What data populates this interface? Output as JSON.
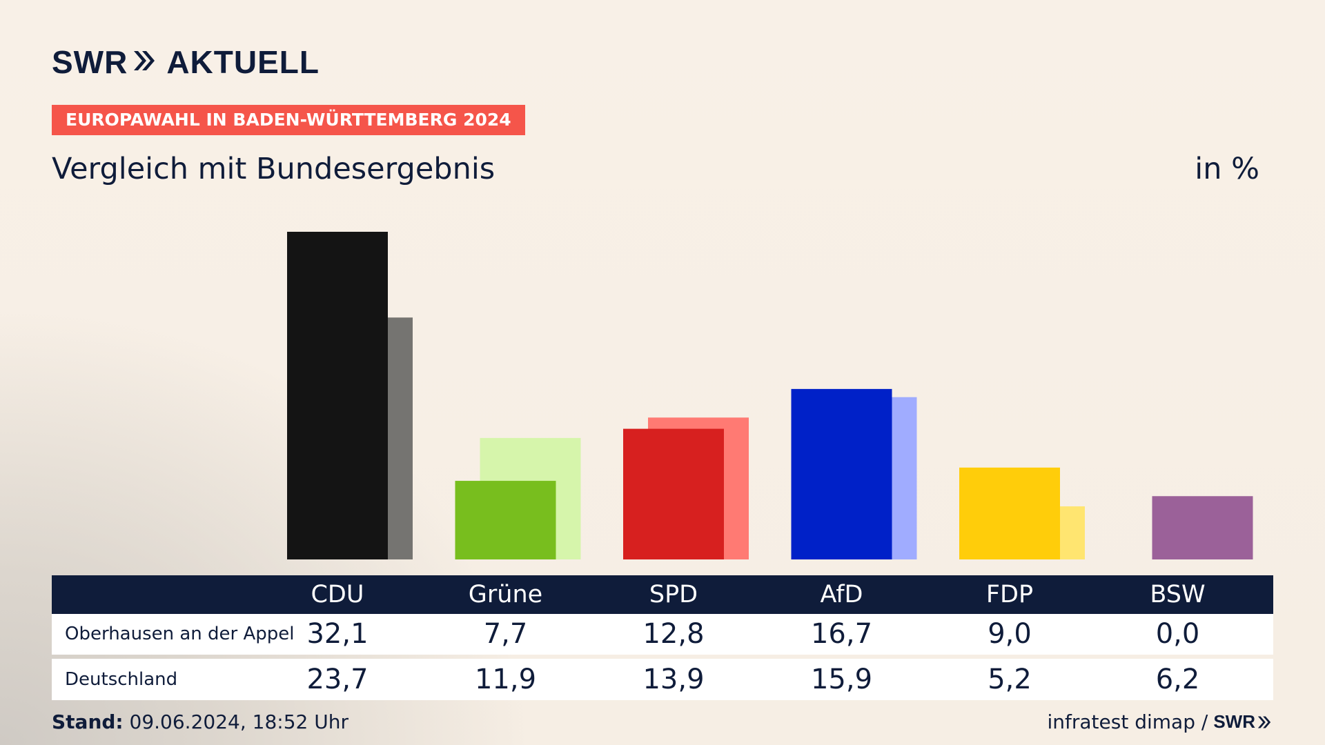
{
  "brand": {
    "logo_left": "SWR",
    "logo_right": "AKTUELL",
    "footer_logo": "SWR",
    "color": "#0f1c3a"
  },
  "tag": {
    "label": "EUROPAWAHL IN BADEN-WÜRTTEMBERG 2024",
    "color": "#f5554a"
  },
  "subtitle": "Vergleich mit Bundesergebnis",
  "unit": "in %",
  "chart_data": {
    "type": "bar",
    "categories": [
      "CDU",
      "Grüne",
      "SPD",
      "AfD",
      "FDP",
      "BSW"
    ],
    "series": [
      {
        "name": "Oberhausen an der Appel",
        "values": [
          32.1,
          7.7,
          12.8,
          16.7,
          9.0,
          0.0
        ],
        "display": [
          "32,1",
          "7,7",
          "12,8",
          "16,7",
          "9,0",
          "0,0"
        ],
        "colors": [
          "#141414",
          "#78be1e",
          "#d7201f",
          "#0021c8",
          "#ffcd0a",
          "#9b6199"
        ]
      },
      {
        "name": "Deutschland",
        "values": [
          23.7,
          11.9,
          13.9,
          15.9,
          5.2,
          6.2
        ],
        "display": [
          "23,7",
          "11,9",
          "13,9",
          "15,9",
          "5,2",
          "6,2"
        ],
        "colors": [
          "#757471",
          "#d6f5ab",
          "#ff7a73",
          "#a0acff",
          "#ffe570",
          "#9b6199"
        ]
      }
    ],
    "ylim": [
      0,
      32.1
    ],
    "grid": false,
    "legend": "table-below"
  },
  "footer": {
    "stand_label": "Stand:",
    "stand_value": " 09.06.2024, 18:52 Uhr",
    "source": "infratest dimap /"
  }
}
